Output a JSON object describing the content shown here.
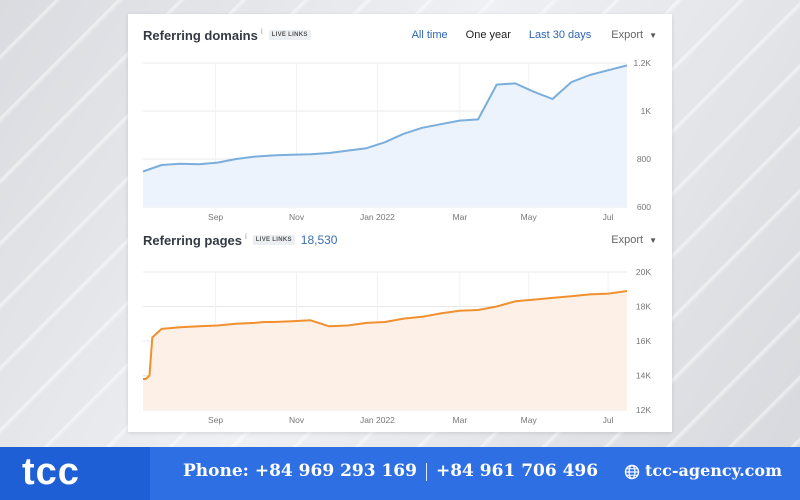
{
  "domains_panel": {
    "title": "Referring domains",
    "info_mark": "i",
    "badge": "LIVE LINKS",
    "ranges": [
      "All time",
      "One year",
      "Last 30 days"
    ],
    "active_range": "One year",
    "export_label": "Export",
    "export_caret": "▼"
  },
  "pages_panel": {
    "title": "Referring pages",
    "info_mark": "i",
    "badge": "LIVE LINKS",
    "count": "18,530",
    "export_label": "Export",
    "export_caret": "▼"
  },
  "footer": {
    "logo": "tcc",
    "phone_1": "Phone: +84 969 293 169",
    "phone_2": "+84 961 706 496",
    "website": "tcc-agency.com"
  },
  "colors": {
    "domains_line": "#7aaedc",
    "domains_fill": "#edf3fc",
    "pages_line": "#f0902e",
    "pages_fill": "#fdf1e7",
    "footer_bg": "#2f6fe4"
  },
  "chart_data": [
    {
      "type": "area",
      "title": "Referring domains",
      "x_tick_labels": [
        "Sep",
        "Nov",
        "Jan 2022",
        "Mar",
        "May",
        "Jul"
      ],
      "y_tick_labels": [
        "1.2K",
        "1K",
        "800",
        "600"
      ],
      "ylim": [
        600,
        1200
      ],
      "x": [
        0,
        2,
        4,
        6,
        8,
        10,
        12,
        14,
        16,
        18,
        20,
        22,
        24,
        26,
        28,
        30,
        32,
        34,
        36,
        38,
        40,
        42,
        44,
        46,
        48,
        50,
        52
      ],
      "series": [
        {
          "values": [
            748,
            775,
            780,
            778,
            785,
            800,
            810,
            815,
            818,
            820,
            825,
            835,
            845,
            870,
            905,
            930,
            945,
            960,
            965,
            1110,
            1115,
            1080,
            1050,
            1120,
            1150,
            1170,
            1190
          ]
        }
      ],
      "grid": true
    },
    {
      "type": "area",
      "title": "Referring pages",
      "x_tick_labels": [
        "Sep",
        "Nov",
        "Jan 2022",
        "Mar",
        "May",
        "Jul"
      ],
      "y_tick_labels": [
        "20K",
        "18K",
        "16K",
        "14K",
        "12K"
      ],
      "ylim": [
        12000,
        20000
      ],
      "x": [
        0,
        0.3,
        0.7,
        1,
        2,
        4,
        6,
        8,
        10,
        12,
        13,
        14,
        16,
        18,
        20,
        22,
        24,
        26,
        28,
        30,
        32,
        34,
        36,
        38,
        40,
        42,
        44,
        46,
        48,
        50,
        52
      ],
      "series": [
        {
          "values": [
            13800,
            13800,
            14000,
            16200,
            16700,
            16800,
            16850,
            16900,
            17000,
            17050,
            17100,
            17100,
            17150,
            17200,
            16850,
            16900,
            17050,
            17100,
            17300,
            17400,
            17600,
            17750,
            17800,
            18000,
            18300,
            18400,
            18500,
            18600,
            18700,
            18750,
            18900
          ]
        }
      ],
      "grid": true
    }
  ]
}
